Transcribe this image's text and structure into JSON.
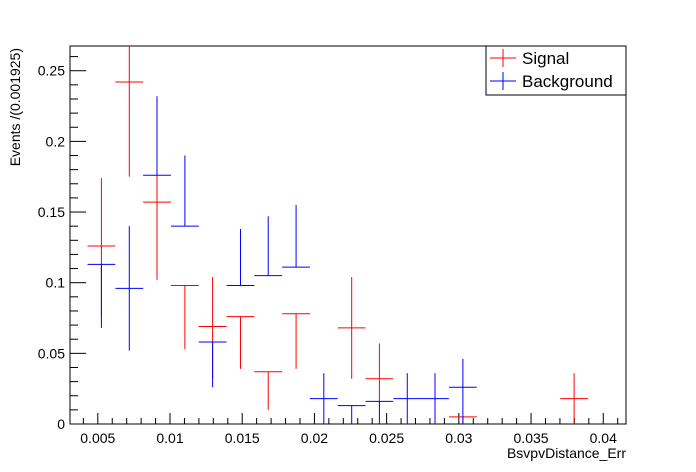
{
  "chart_data": {
    "type": "scatter",
    "title": "",
    "xlabel": "BsvpvDistance_Err",
    "ylabel": "Events /(0.001925)",
    "xlim": [
      0.003075,
      0.041575
    ],
    "ylim": [
      0,
      0.2675
    ],
    "x_ticks": [
      "0.005",
      "0.01",
      "0.015",
      "0.02",
      "0.025",
      "0.03",
      "0.035",
      "0.04"
    ],
    "y_ticks": [
      "0",
      "0.05",
      "0.1",
      "0.15",
      "0.2",
      "0.25"
    ],
    "bin_width": 0.001925,
    "grid": false,
    "legend_position": "top-right",
    "series": [
      {
        "name": "Signal",
        "color": "#ff0000",
        "points": [
          {
            "x": 0.00525,
            "y": 0.126,
            "err_lo": 0.05,
            "err_hi": 0.048
          },
          {
            "x": 0.00718,
            "y": 0.242,
            "err_lo": 0.067,
            "err_hi": 0.032
          },
          {
            "x": 0.0091,
            "y": 0.157,
            "err_lo": 0.055,
            "err_hi": 0.057
          },
          {
            "x": 0.01103,
            "y": 0.098,
            "err_lo": 0.045,
            "err_hi": 0.0
          },
          {
            "x": 0.01295,
            "y": 0.069,
            "err_lo": 0.037,
            "err_hi": 0.035
          },
          {
            "x": 0.01488,
            "y": 0.076,
            "err_lo": 0.037,
            "err_hi": 0.0
          },
          {
            "x": 0.0168,
            "y": 0.037,
            "err_lo": 0.027,
            "err_hi": 0.0
          },
          {
            "x": 0.01873,
            "y": 0.078,
            "err_lo": 0.039,
            "err_hi": 0.0
          },
          {
            "x": 0.02258,
            "y": 0.068,
            "err_lo": 0.036,
            "err_hi": 0.036
          },
          {
            "x": 0.0245,
            "y": 0.032,
            "err_lo": 0.017,
            "err_hi": 0.025
          },
          {
            "x": 0.03028,
            "y": 0.005,
            "err_lo": 0.005,
            "err_hi": 0.0
          },
          {
            "x": 0.03798,
            "y": 0.018,
            "err_lo": 0.018,
            "err_hi": 0.018
          }
        ]
      },
      {
        "name": "Background",
        "color": "#0000ff",
        "points": [
          {
            "x": 0.00525,
            "y": 0.113,
            "err_lo": 0.045,
            "err_hi": 0.0
          },
          {
            "x": 0.00718,
            "y": 0.096,
            "err_lo": 0.044,
            "err_hi": 0.044
          },
          {
            "x": 0.0091,
            "y": 0.176,
            "err_lo": 0.0,
            "err_hi": 0.056
          },
          {
            "x": 0.01103,
            "y": 0.14,
            "err_lo": 0.0,
            "err_hi": 0.05
          },
          {
            "x": 0.01295,
            "y": 0.058,
            "err_lo": 0.032,
            "err_hi": 0.0
          },
          {
            "x": 0.01488,
            "y": 0.098,
            "err_lo": 0.0,
            "err_hi": 0.04
          },
          {
            "x": 0.0168,
            "y": 0.105,
            "err_lo": 0.0,
            "err_hi": 0.042
          },
          {
            "x": 0.01873,
            "y": 0.111,
            "err_lo": 0.0,
            "err_hi": 0.044
          },
          {
            "x": 0.02065,
            "y": 0.018,
            "err_lo": 0.018,
            "err_hi": 0.018
          },
          {
            "x": 0.02258,
            "y": 0.013,
            "err_lo": 0.013,
            "err_hi": 0.0
          },
          {
            "x": 0.0245,
            "y": 0.016,
            "err_lo": 0.016,
            "err_hi": 0.0
          },
          {
            "x": 0.02643,
            "y": 0.018,
            "err_lo": 0.018,
            "err_hi": 0.018
          },
          {
            "x": 0.02835,
            "y": 0.018,
            "err_lo": 0.018,
            "err_hi": 0.018
          },
          {
            "x": 0.03028,
            "y": 0.026,
            "err_lo": 0.026,
            "err_hi": 0.02
          }
        ]
      }
    ]
  }
}
